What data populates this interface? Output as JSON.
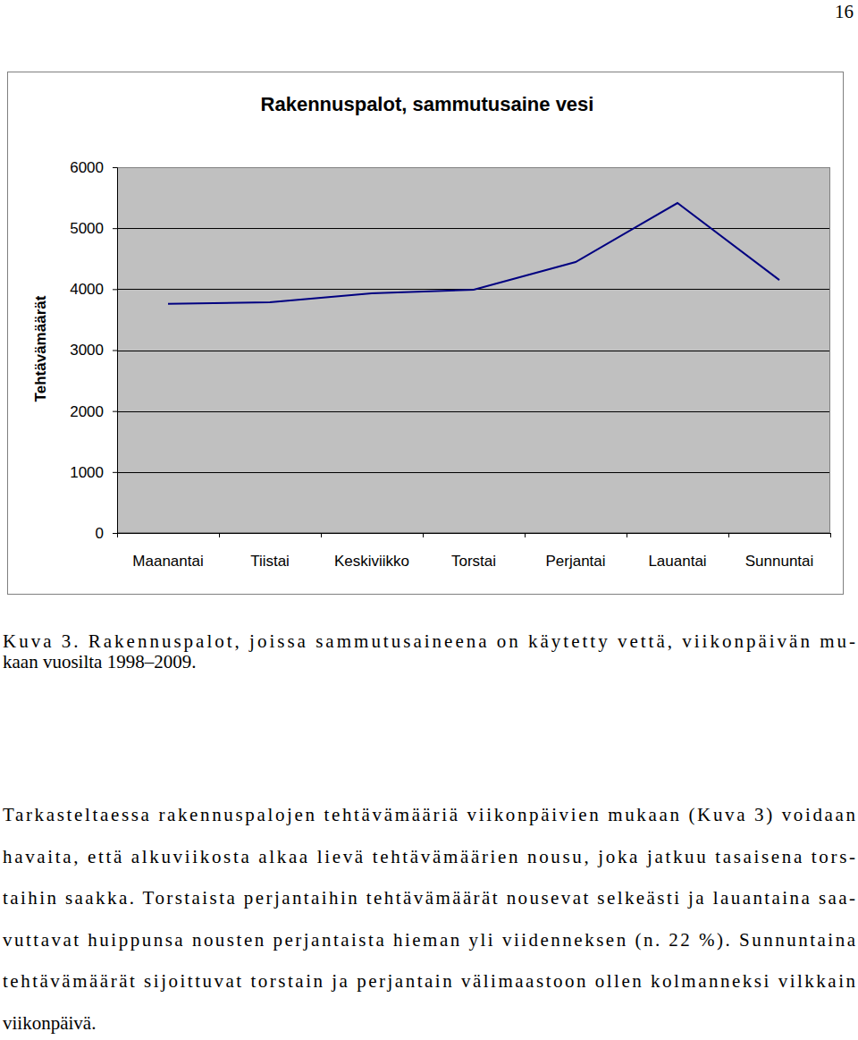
{
  "page_number": "16",
  "chart_data": {
    "type": "line",
    "title": "Rakennuspalot, sammutusaine vesi",
    "y_label": "Tehtävämäärät",
    "categories": [
      "Maanantai",
      "Tiistai",
      "Keskiviikko",
      "Torstai",
      "Perjantai",
      "Lauantai",
      "Sunnuntai"
    ],
    "values": [
      3760,
      3785,
      3930,
      3990,
      4445,
      5413,
      4150
    ],
    "color": "#000080",
    "ylim": [
      0,
      6000
    ],
    "yticks": [
      0,
      1000,
      2000,
      3000,
      4000,
      5000,
      6000
    ],
    "grid": true
  },
  "caption": [
    "Kuva 3. Rakennuspalot, joissa sammutusaineena on käytetty vettä, viikonpäivän mu-",
    "kaan vuosilta 1998–2009."
  ],
  "paragraph": [
    "Tarkasteltaessa rakennuspalojen tehtävämääriä viikonpäivien mukaan (Kuva 3) voidaan",
    "havaita, että alkuviikosta alkaa lievä tehtävämäärien nousu, joka jatkuu tasaisena tors-",
    "taihin saakka. Torstaista perjantaihin tehtävämäärät nousevat selkeästi ja lauantaina saa-",
    "vuttavat huippunsa nousten perjantaista hieman yli viidenneksen (n. 22 %). Sunnuntaina",
    "tehtävämäärät sijoittuvat torstain ja perjantain välimaastoon ollen kolmanneksi vilkkain",
    "viikonpäivä."
  ]
}
